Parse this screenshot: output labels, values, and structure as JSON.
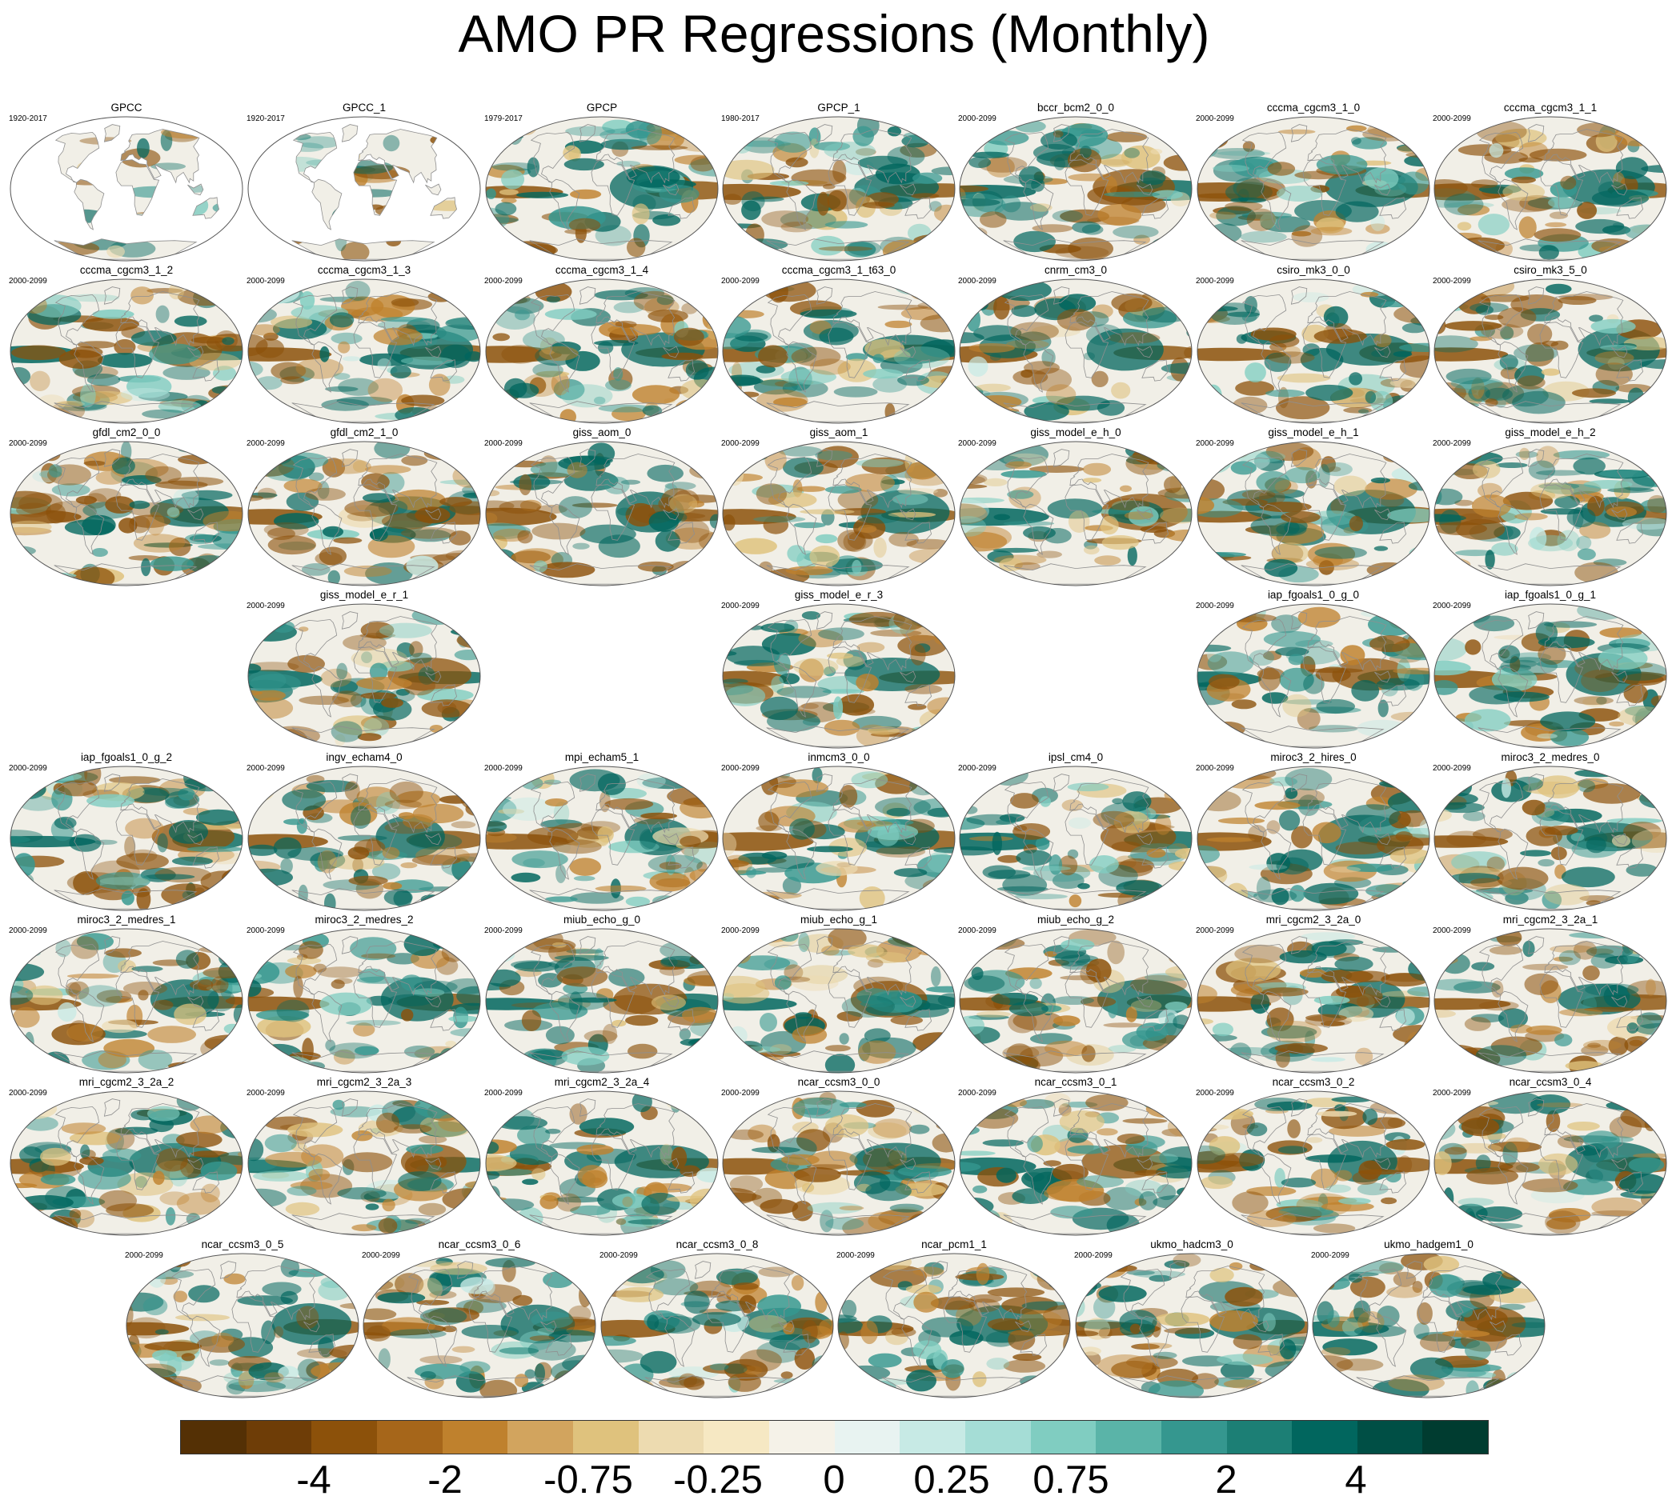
{
  "title": "AMO PR Regressions (Monthly)",
  "colors": {
    "ocean_base": "#f1efe7",
    "coast": "#8f8f8f",
    "outline": "#555555",
    "dry_strong": "#8c5109",
    "wet_strong": "#01665e"
  },
  "colorbar": {
    "colors": [
      "#543005",
      "#6e3d07",
      "#8c510a",
      "#a6661a",
      "#bf812d",
      "#d2a45e",
      "#dfc27d",
      "#eddbb0",
      "#f6e8c3",
      "#f5f2e8",
      "#e8f3f1",
      "#c7eae5",
      "#a5ddd6",
      "#80cdc1",
      "#5ab4a8",
      "#35978f",
      "#1c7f75",
      "#01665e",
      "#004f45",
      "#003c30"
    ],
    "labels": [
      "-4",
      "-2",
      "-0.75",
      "-0.25",
      "0",
      "0.25",
      "0.75",
      "2",
      "4"
    ]
  },
  "panels": [
    {
      "name": "GPCC",
      "years": "1920-2017",
      "land_only": true
    },
    {
      "name": "GPCC_1",
      "years": "1920-2017",
      "land_only": true
    },
    {
      "name": "GPCP",
      "years": "1979-2017"
    },
    {
      "name": "GPCP_1",
      "years": "1980-2017"
    },
    {
      "name": "bccr_bcm2_0_0",
      "years": "2000-2099"
    },
    {
      "name": "cccma_cgcm3_1_0",
      "years": "2000-2099"
    },
    {
      "name": "cccma_cgcm3_1_1",
      "years": "2000-2099"
    },
    {
      "name": "cccma_cgcm3_1_2",
      "years": "2000-2099"
    },
    {
      "name": "cccma_cgcm3_1_3",
      "years": "2000-2099"
    },
    {
      "name": "cccma_cgcm3_1_4",
      "years": "2000-2099"
    },
    {
      "name": "cccma_cgcm3_1_t63_0",
      "years": "2000-2099"
    },
    {
      "name": "cnrm_cm3_0",
      "years": "2000-2099"
    },
    {
      "name": "csiro_mk3_0_0",
      "years": "2000-2099"
    },
    {
      "name": "csiro_mk3_5_0",
      "years": "2000-2099"
    },
    {
      "name": "gfdl_cm2_0_0",
      "years": "2000-2099"
    },
    {
      "name": "gfdl_cm2_1_0",
      "years": "2000-2099"
    },
    {
      "name": "giss_aom_0",
      "years": "2000-2099"
    },
    {
      "name": "giss_aom_1",
      "years": "2000-2099"
    },
    {
      "name": "giss_model_e_h_0",
      "years": "2000-2099"
    },
    {
      "name": "giss_model_e_h_1",
      "years": "2000-2099"
    },
    {
      "name": "giss_model_e_h_2",
      "years": "2000-2099"
    },
    {
      "name": "giss_model_e_r_1",
      "years": "2000-2099"
    },
    {
      "name": "giss_model_e_r_3",
      "years": "2000-2099"
    },
    {
      "name": "iap_fgoals1_0_g_0",
      "years": "2000-2099"
    },
    {
      "name": "iap_fgoals1_0_g_1",
      "years": "2000-2099"
    },
    {
      "name": "iap_fgoals1_0_g_2",
      "years": "2000-2099"
    },
    {
      "name": "ingv_echam4_0",
      "years": "2000-2099"
    },
    {
      "name": "mpi_echam5_1",
      "years": "2000-2099"
    },
    {
      "name": "inmcm3_0_0",
      "years": "2000-2099"
    },
    {
      "name": "ipsl_cm4_0",
      "years": "2000-2099"
    },
    {
      "name": "miroc3_2_hires_0",
      "years": "2000-2099"
    },
    {
      "name": "miroc3_2_medres_0",
      "years": "2000-2099"
    },
    {
      "name": "miroc3_2_medres_1",
      "years": "2000-2099"
    },
    {
      "name": "miroc3_2_medres_2",
      "years": "2000-2099"
    },
    {
      "name": "miub_echo_g_0",
      "years": "2000-2099"
    },
    {
      "name": "miub_echo_g_1",
      "years": "2000-2099"
    },
    {
      "name": "miub_echo_g_2",
      "years": "2000-2099"
    },
    {
      "name": "mri_cgcm2_3_2a_0",
      "years": "2000-2099"
    },
    {
      "name": "mri_cgcm2_3_2a_1",
      "years": "2000-2099"
    },
    {
      "name": "mri_cgcm2_3_2a_2",
      "years": "2000-2099"
    },
    {
      "name": "mri_cgcm2_3_2a_3",
      "years": "2000-2099"
    },
    {
      "name": "mri_cgcm2_3_2a_4",
      "years": "2000-2099"
    },
    {
      "name": "ncar_ccsm3_0_0",
      "years": "2000-2099"
    },
    {
      "name": "ncar_ccsm3_0_1",
      "years": "2000-2099"
    },
    {
      "name": "ncar_ccsm3_0_2",
      "years": "2000-2099"
    },
    {
      "name": "ncar_ccsm3_0_4",
      "years": "2000-2099"
    },
    {
      "name": "ncar_ccsm3_0_5",
      "years": "2000-2099"
    },
    {
      "name": "ncar_ccsm3_0_6",
      "years": "2000-2099"
    },
    {
      "name": "ncar_ccsm3_0_8",
      "years": "2000-2099"
    },
    {
      "name": "ncar_pcm1_1",
      "years": "2000-2099"
    },
    {
      "name": "ukmo_hadcm3_0",
      "years": "2000-2099"
    },
    {
      "name": "ukmo_hadgem1_0",
      "years": "2000-2099"
    }
  ]
}
